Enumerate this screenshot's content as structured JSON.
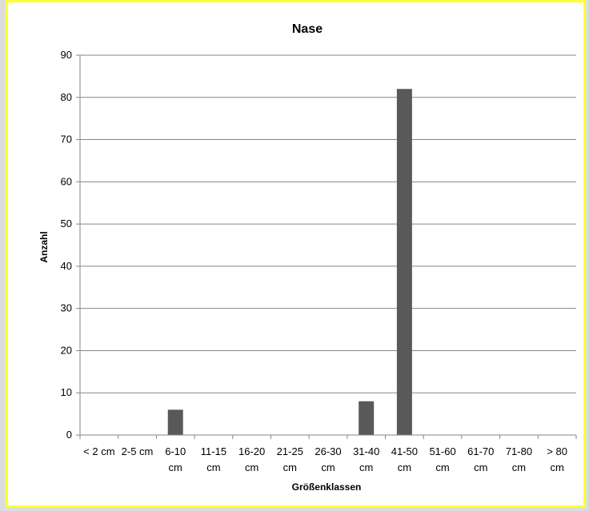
{
  "chart_data": {
    "type": "bar",
    "title": "Nase",
    "xlabel": "Größenklassen",
    "ylabel": "Anzahl",
    "categories": [
      "< 2 cm",
      "2-5 cm",
      "6-10 cm",
      "11-15 cm",
      "16-20 cm",
      "21-25 cm",
      "26-30 cm",
      "31-40 cm",
      "41-50 cm",
      "51-60 cm",
      "61-70 cm",
      "71-80 cm",
      "> 80 cm"
    ],
    "category_lines": [
      [
        "< 2 cm"
      ],
      [
        "2-5 cm"
      ],
      [
        "6-10",
        "cm"
      ],
      [
        "11-15",
        "cm"
      ],
      [
        "16-20",
        "cm"
      ],
      [
        "21-25",
        "cm"
      ],
      [
        "26-30",
        "cm"
      ],
      [
        "31-40",
        "cm"
      ],
      [
        "41-50",
        "cm"
      ],
      [
        "51-60",
        "cm"
      ],
      [
        "61-70",
        "cm"
      ],
      [
        "71-80",
        "cm"
      ],
      [
        "> 80",
        "cm"
      ]
    ],
    "values": [
      0,
      0,
      6,
      0,
      0,
      0,
      0,
      8,
      82,
      0,
      0,
      0,
      0
    ],
    "ylim": [
      0,
      90
    ],
    "yticks": [
      0,
      10,
      20,
      30,
      40,
      50,
      60,
      70,
      80,
      90
    ],
    "grid": true,
    "legend": "none",
    "colors": {
      "bar": "#595959",
      "grid": "#868686",
      "frame_border": "#ffff33",
      "page_background": "#dcdcdc"
    }
  }
}
